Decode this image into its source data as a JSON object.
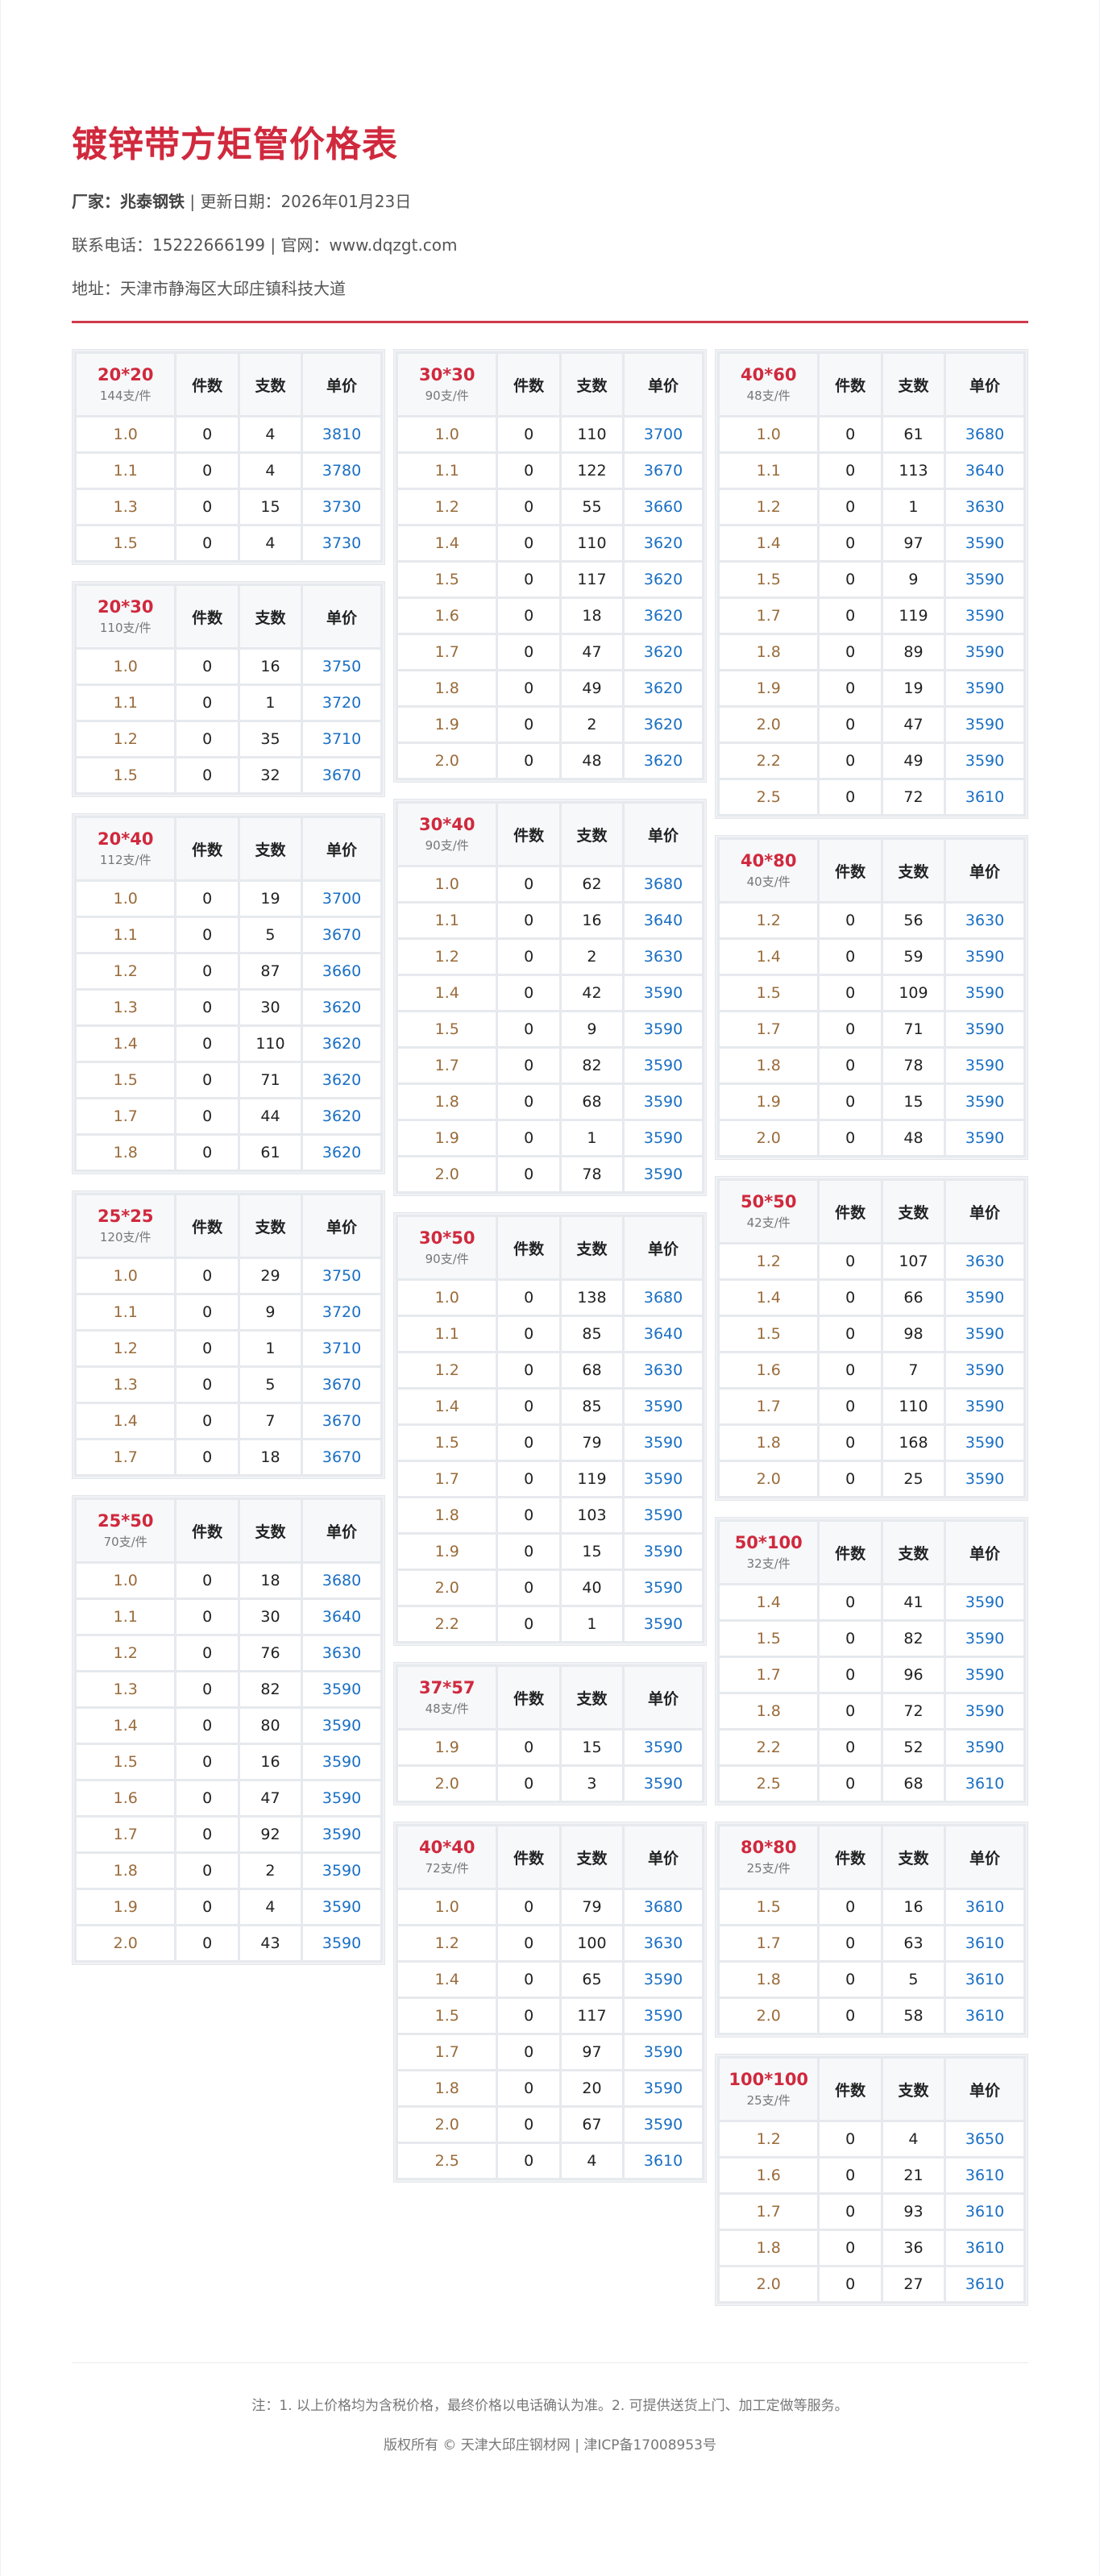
{
  "title": "镀锌带方矩管价格表",
  "info": {
    "maker_label": "厂家：兆泰钢铁",
    "date_text": "| 更新日期：2026年01月23日",
    "contact_text": "联系电话：15222666199 | 官网：www.dqzgt.com",
    "address_text": "地址：天津市静海区大邱庄镇科技大道"
  },
  "columns_header": [
    "件数",
    "支数",
    "单价"
  ],
  "colors": {
    "accent": "#d0293d",
    "thickness": "#9a6b3a",
    "price": "#1a6fc4"
  },
  "columns": [
    [
      {
        "spec": "20*20",
        "per": "144支/件",
        "rows": [
          [
            "1.0",
            "0",
            "4",
            "3810"
          ],
          [
            "1.1",
            "0",
            "4",
            "3780"
          ],
          [
            "1.3",
            "0",
            "15",
            "3730"
          ],
          [
            "1.5",
            "0",
            "4",
            "3730"
          ]
        ]
      },
      {
        "spec": "20*30",
        "per": "110支/件",
        "rows": [
          [
            "1.0",
            "0",
            "16",
            "3750"
          ],
          [
            "1.1",
            "0",
            "1",
            "3720"
          ],
          [
            "1.2",
            "0",
            "35",
            "3710"
          ],
          [
            "1.5",
            "0",
            "32",
            "3670"
          ]
        ]
      },
      {
        "spec": "20*40",
        "per": "112支/件",
        "rows": [
          [
            "1.0",
            "0",
            "19",
            "3700"
          ],
          [
            "1.1",
            "0",
            "5",
            "3670"
          ],
          [
            "1.2",
            "0",
            "87",
            "3660"
          ],
          [
            "1.3",
            "0",
            "30",
            "3620"
          ],
          [
            "1.4",
            "0",
            "110",
            "3620"
          ],
          [
            "1.5",
            "0",
            "71",
            "3620"
          ],
          [
            "1.7",
            "0",
            "44",
            "3620"
          ],
          [
            "1.8",
            "0",
            "61",
            "3620"
          ]
        ]
      },
      {
        "spec": "25*25",
        "per": "120支/件",
        "rows": [
          [
            "1.0",
            "0",
            "29",
            "3750"
          ],
          [
            "1.1",
            "0",
            "9",
            "3720"
          ],
          [
            "1.2",
            "0",
            "1",
            "3710"
          ],
          [
            "1.3",
            "0",
            "5",
            "3670"
          ],
          [
            "1.4",
            "0",
            "7",
            "3670"
          ],
          [
            "1.7",
            "0",
            "18",
            "3670"
          ]
        ]
      },
      {
        "spec": "25*50",
        "per": "70支/件",
        "rows": [
          [
            "1.0",
            "0",
            "18",
            "3680"
          ],
          [
            "1.1",
            "0",
            "30",
            "3640"
          ],
          [
            "1.2",
            "0",
            "76",
            "3630"
          ],
          [
            "1.3",
            "0",
            "82",
            "3590"
          ],
          [
            "1.4",
            "0",
            "80",
            "3590"
          ],
          [
            "1.5",
            "0",
            "16",
            "3590"
          ],
          [
            "1.6",
            "0",
            "47",
            "3590"
          ],
          [
            "1.7",
            "0",
            "92",
            "3590"
          ],
          [
            "1.8",
            "0",
            "2",
            "3590"
          ],
          [
            "1.9",
            "0",
            "4",
            "3590"
          ],
          [
            "2.0",
            "0",
            "43",
            "3590"
          ]
        ]
      }
    ],
    [
      {
        "spec": "30*30",
        "per": "90支/件",
        "rows": [
          [
            "1.0",
            "0",
            "110",
            "3700"
          ],
          [
            "1.1",
            "0",
            "122",
            "3670"
          ],
          [
            "1.2",
            "0",
            "55",
            "3660"
          ],
          [
            "1.4",
            "0",
            "110",
            "3620"
          ],
          [
            "1.5",
            "0",
            "117",
            "3620"
          ],
          [
            "1.6",
            "0",
            "18",
            "3620"
          ],
          [
            "1.7",
            "0",
            "47",
            "3620"
          ],
          [
            "1.8",
            "0",
            "49",
            "3620"
          ],
          [
            "1.9",
            "0",
            "2",
            "3620"
          ],
          [
            "2.0",
            "0",
            "48",
            "3620"
          ]
        ]
      },
      {
        "spec": "30*40",
        "per": "90支/件",
        "rows": [
          [
            "1.0",
            "0",
            "62",
            "3680"
          ],
          [
            "1.1",
            "0",
            "16",
            "3640"
          ],
          [
            "1.2",
            "0",
            "2",
            "3630"
          ],
          [
            "1.4",
            "0",
            "42",
            "3590"
          ],
          [
            "1.5",
            "0",
            "9",
            "3590"
          ],
          [
            "1.7",
            "0",
            "82",
            "3590"
          ],
          [
            "1.8",
            "0",
            "68",
            "3590"
          ],
          [
            "1.9",
            "0",
            "1",
            "3590"
          ],
          [
            "2.0",
            "0",
            "78",
            "3590"
          ]
        ]
      },
      {
        "spec": "30*50",
        "per": "90支/件",
        "rows": [
          [
            "1.0",
            "0",
            "138",
            "3680"
          ],
          [
            "1.1",
            "0",
            "85",
            "3640"
          ],
          [
            "1.2",
            "0",
            "68",
            "3630"
          ],
          [
            "1.4",
            "0",
            "85",
            "3590"
          ],
          [
            "1.5",
            "0",
            "79",
            "3590"
          ],
          [
            "1.7",
            "0",
            "119",
            "3590"
          ],
          [
            "1.8",
            "0",
            "103",
            "3590"
          ],
          [
            "1.9",
            "0",
            "15",
            "3590"
          ],
          [
            "2.0",
            "0",
            "40",
            "3590"
          ],
          [
            "2.2",
            "0",
            "1",
            "3590"
          ]
        ]
      },
      {
        "spec": "37*57",
        "per": "48支/件",
        "rows": [
          [
            "1.9",
            "0",
            "15",
            "3590"
          ],
          [
            "2.0",
            "0",
            "3",
            "3590"
          ]
        ]
      },
      {
        "spec": "40*40",
        "per": "72支/件",
        "rows": [
          [
            "1.0",
            "0",
            "79",
            "3680"
          ],
          [
            "1.2",
            "0",
            "100",
            "3630"
          ],
          [
            "1.4",
            "0",
            "65",
            "3590"
          ],
          [
            "1.5",
            "0",
            "117",
            "3590"
          ],
          [
            "1.7",
            "0",
            "97",
            "3590"
          ],
          [
            "1.8",
            "0",
            "20",
            "3590"
          ],
          [
            "2.0",
            "0",
            "67",
            "3590"
          ],
          [
            "2.5",
            "0",
            "4",
            "3610"
          ]
        ]
      }
    ],
    [
      {
        "spec": "40*60",
        "per": "48支/件",
        "rows": [
          [
            "1.0",
            "0",
            "61",
            "3680"
          ],
          [
            "1.1",
            "0",
            "113",
            "3640"
          ],
          [
            "1.2",
            "0",
            "1",
            "3630"
          ],
          [
            "1.4",
            "0",
            "97",
            "3590"
          ],
          [
            "1.5",
            "0",
            "9",
            "3590"
          ],
          [
            "1.7",
            "0",
            "119",
            "3590"
          ],
          [
            "1.8",
            "0",
            "89",
            "3590"
          ],
          [
            "1.9",
            "0",
            "19",
            "3590"
          ],
          [
            "2.0",
            "0",
            "47",
            "3590"
          ],
          [
            "2.2",
            "0",
            "49",
            "3590"
          ],
          [
            "2.5",
            "0",
            "72",
            "3610"
          ]
        ]
      },
      {
        "spec": "40*80",
        "per": "40支/件",
        "rows": [
          [
            "1.2",
            "0",
            "56",
            "3630"
          ],
          [
            "1.4",
            "0",
            "59",
            "3590"
          ],
          [
            "1.5",
            "0",
            "109",
            "3590"
          ],
          [
            "1.7",
            "0",
            "71",
            "3590"
          ],
          [
            "1.8",
            "0",
            "78",
            "3590"
          ],
          [
            "1.9",
            "0",
            "15",
            "3590"
          ],
          [
            "2.0",
            "0",
            "48",
            "3590"
          ]
        ]
      },
      {
        "spec": "50*50",
        "per": "42支/件",
        "rows": [
          [
            "1.2",
            "0",
            "107",
            "3630"
          ],
          [
            "1.4",
            "0",
            "66",
            "3590"
          ],
          [
            "1.5",
            "0",
            "98",
            "3590"
          ],
          [
            "1.6",
            "0",
            "7",
            "3590"
          ],
          [
            "1.7",
            "0",
            "110",
            "3590"
          ],
          [
            "1.8",
            "0",
            "168",
            "3590"
          ],
          [
            "2.0",
            "0",
            "25",
            "3590"
          ]
        ]
      },
      {
        "spec": "50*100",
        "per": "32支/件",
        "rows": [
          [
            "1.4",
            "0",
            "41",
            "3590"
          ],
          [
            "1.5",
            "0",
            "82",
            "3590"
          ],
          [
            "1.7",
            "0",
            "96",
            "3590"
          ],
          [
            "1.8",
            "0",
            "72",
            "3590"
          ],
          [
            "2.2",
            "0",
            "52",
            "3590"
          ],
          [
            "2.5",
            "0",
            "68",
            "3610"
          ]
        ]
      },
      {
        "spec": "80*80",
        "per": "25支/件",
        "rows": [
          [
            "1.5",
            "0",
            "16",
            "3610"
          ],
          [
            "1.7",
            "0",
            "63",
            "3610"
          ],
          [
            "1.8",
            "0",
            "5",
            "3610"
          ],
          [
            "2.0",
            "0",
            "58",
            "3610"
          ]
        ]
      },
      {
        "spec": "100*100",
        "per": "25支/件",
        "rows": [
          [
            "1.2",
            "0",
            "4",
            "3650"
          ],
          [
            "1.6",
            "0",
            "21",
            "3610"
          ],
          [
            "1.7",
            "0",
            "93",
            "3610"
          ],
          [
            "1.8",
            "0",
            "36",
            "3610"
          ],
          [
            "2.0",
            "0",
            "27",
            "3610"
          ]
        ]
      }
    ]
  ],
  "footer": {
    "note": "注：1. 以上价格均为含税价格，最终价格以电话确认为准。2. 可提供送货上门、加工定做等服务。",
    "copyright": "版权所有 © 天津大邱庄钢材网 | 津ICP备17008953号"
  }
}
